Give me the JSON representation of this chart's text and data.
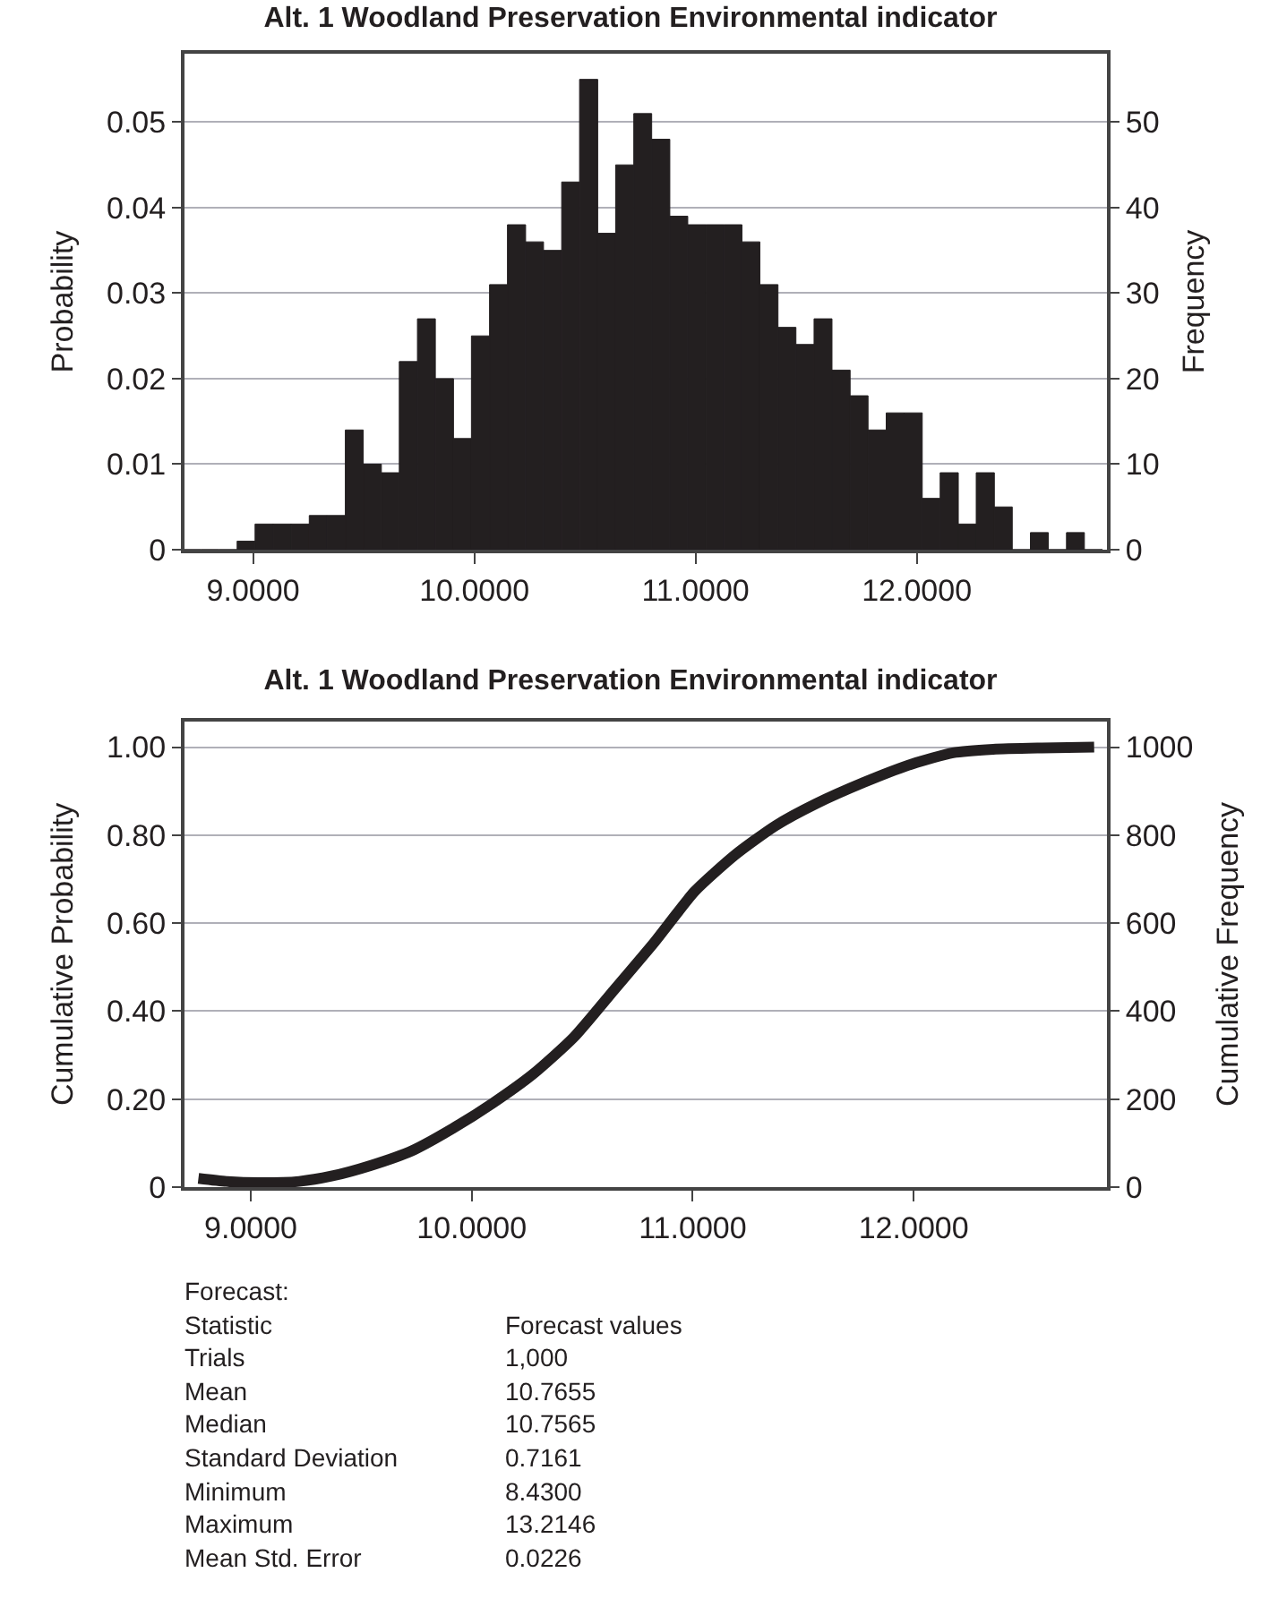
{
  "chart_data": [
    {
      "type": "histogram",
      "title": "Alt. 1 Woodland Preservation Environmental indicator",
      "ylabel": "Probability",
      "y2label": "Frequency",
      "color": "#231f20",
      "bins": [
        8.683,
        8.765,
        8.846,
        8.928,
        9.009,
        9.091,
        9.172,
        9.254,
        9.335,
        9.417,
        9.498,
        9.58,
        9.661,
        9.743,
        9.824,
        9.906,
        9.987,
        10.069,
        10.15,
        10.232,
        10.313,
        10.395,
        10.476,
        10.558,
        10.639,
        10.721,
        10.802,
        10.884,
        10.965,
        11.047,
        11.128,
        11.21,
        11.291,
        11.373,
        11.454,
        11.536,
        11.617,
        11.699,
        11.78,
        11.862,
        11.943,
        12.025,
        12.106,
        12.188,
        12.269,
        12.351,
        12.432,
        12.514,
        12.595,
        12.677,
        12.758,
        12.84
      ],
      "values": [
        0,
        0,
        0,
        0.001,
        0.003,
        0.003,
        0.003,
        0.004,
        0.004,
        0.014,
        0.01,
        0.009,
        0.022,
        0.027,
        0.02,
        0.013,
        0.025,
        0.031,
        0.038,
        0.036,
        0.035,
        0.043,
        0.055,
        0.037,
        0.045,
        0.051,
        0.048,
        0.039,
        0.038,
        0.038,
        0.038,
        0.036,
        0.031,
        0.026,
        0.024,
        0.027,
        0.021,
        0.018,
        0.014,
        0.016,
        0.016,
        0.006,
        0.009,
        0.003,
        0.009,
        0.005,
        0,
        0.002,
        0,
        0.002,
        0
      ],
      "xlim": [
        8.69,
        12.86
      ],
      "xticks": [
        {
          "value": 9,
          "label": "9.0000"
        },
        {
          "value": 10,
          "label": "10.0000"
        },
        {
          "value": 11,
          "label": "11.0000"
        },
        {
          "value": 12,
          "label": "12.0000"
        }
      ],
      "ylim": [
        0,
        0.058
      ],
      "yticks": [
        0,
        0.01,
        0.02,
        0.03,
        0.04,
        0.05
      ],
      "y2lim": [
        0,
        58
      ],
      "y2ticks": [
        0,
        10,
        20,
        30,
        40,
        50
      ],
      "grid": "y"
    },
    {
      "type": "line",
      "title": "Alt. 1 Woodland Preservation Environmental indicator",
      "ylabel": "Cumulative Probability",
      "y2label": "Cumulative Frequency",
      "color": "#231f20",
      "x": [
        8.763,
        8.89,
        9.037,
        9.219,
        9.365,
        9.548,
        9.731,
        9.913,
        10.096,
        10.278,
        10.461,
        10.644,
        10.826,
        11.009,
        11.192,
        11.374,
        11.557,
        11.776,
        11.995,
        12.178,
        12.36,
        12.58,
        12.817
      ],
      "values": [
        0.02,
        0.013,
        0.01,
        0.013,
        0.025,
        0.05,
        0.083,
        0.133,
        0.191,
        0.257,
        0.34,
        0.448,
        0.556,
        0.672,
        0.755,
        0.821,
        0.871,
        0.92,
        0.962,
        0.987,
        0.995,
        0.998,
        1.0
      ],
      "xlim": [
        8.7,
        12.875
      ],
      "xticks": [
        {
          "value": 9,
          "label": "9.0000"
        },
        {
          "value": 10,
          "label": "10.0000"
        },
        {
          "value": 11,
          "label": "11.0000"
        },
        {
          "value": 12,
          "label": "12.0000"
        }
      ],
      "ylim": [
        0,
        1.058
      ],
      "yticks": [
        0,
        {
          "value": 0.2,
          "label": "0.20"
        },
        {
          "value": 0.4,
          "label": "0.40"
        },
        {
          "value": 0.6,
          "label": "0.60"
        },
        {
          "value": 0.8,
          "label": "0.80"
        },
        {
          "value": 1,
          "label": "1.00"
        }
      ],
      "y2lim": [
        0,
        1058
      ],
      "y2ticks": [
        0,
        200,
        400,
        600,
        800,
        1000
      ],
      "grid": "y"
    },
    {
      "type": "other",
      "title": "Forecast:",
      "annotations": [
        "Statistic",
        "Forecast values",
        "Trials",
        "1,000",
        "Mean",
        "10.7655",
        "Median",
        "10.7565",
        "Standard Deviation",
        "0.7161",
        "Minimum",
        "8.4300",
        "Maximum",
        "13.2146",
        "Mean Std. Error",
        "0.0226"
      ]
    }
  ]
}
